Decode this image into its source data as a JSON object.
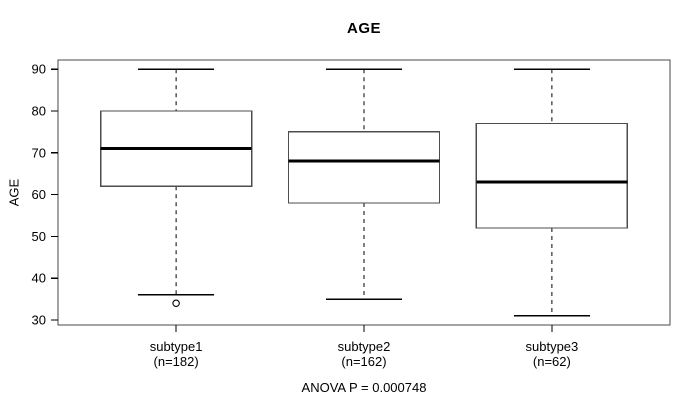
{
  "figure": {
    "background": "#ffffff",
    "foreground": "#000000",
    "frame_color": "#4a4a4a",
    "box_stroke_color": "#4d4d4d"
  },
  "chart_data": {
    "type": "boxplot",
    "title": "AGE",
    "ylabel": "AGE",
    "xlabel": "",
    "annotation": "ANOVA P = 0.000748",
    "ylim": [
      28.8,
      92.2
    ],
    "yticks": [
      30,
      40,
      50,
      60,
      70,
      80,
      90
    ],
    "grid": false,
    "groups": [
      {
        "label": "subtype1",
        "sublabel": "(n=182)",
        "whisker_low": 36,
        "q1": 62,
        "median": 71,
        "q3": 80,
        "whisker_high": 90,
        "outliers": [
          34
        ]
      },
      {
        "label": "subtype2",
        "sublabel": "(n=162)",
        "whisker_low": 35,
        "q1": 58,
        "median": 68,
        "q3": 75,
        "whisker_high": 90,
        "outliers": []
      },
      {
        "label": "subtype3",
        "sublabel": "(n=62)",
        "whisker_low": 31,
        "q1": 52,
        "median": 63,
        "q3": 77,
        "whisker_high": 90,
        "outliers": []
      }
    ]
  }
}
